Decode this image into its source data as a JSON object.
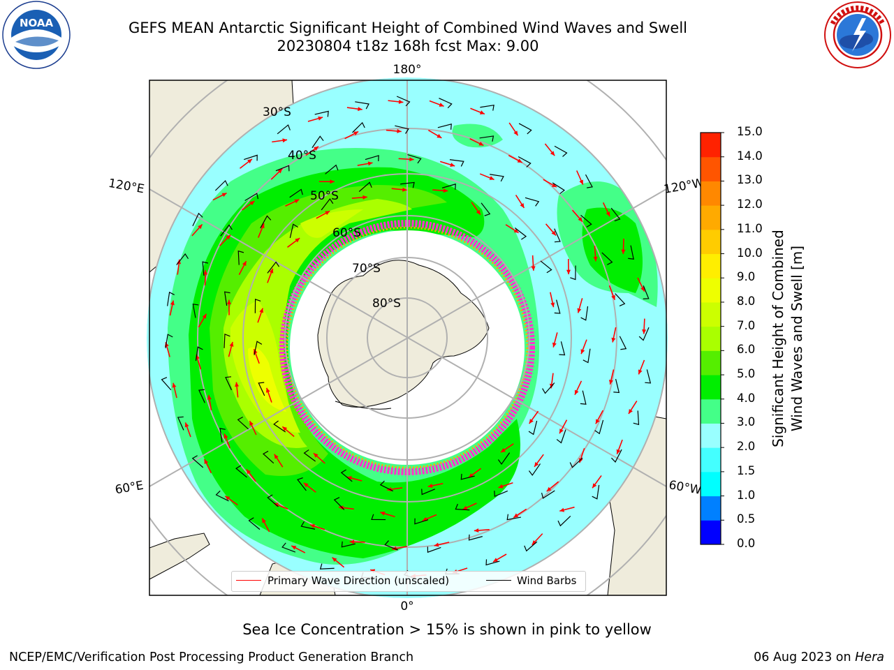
{
  "header": {
    "title_line1": "GEFS MEAN Antarctic Significant Height of Combined Wind Waves and Swell",
    "title_line2": "20230804 t18z 168h fcst   Max: 9.00"
  },
  "logos": {
    "noaa_text": "NOAA",
    "noaa_ring_text": "NATIONAL OCEANIC AND ATMOSPHERIC ADMINISTRATION · U.S. DEPARTMENT OF COMMERCE",
    "nws_ring_text": "NATIONAL WEATHER SERVICE"
  },
  "map": {
    "projection": "south-polar-stereographic",
    "center_longitude_top": "180°",
    "longitude_labels": {
      "top": "180°",
      "bottom": "0°",
      "upper_left": "120°E",
      "lower_left": "60°E",
      "upper_right": "120°W",
      "lower_right": "60°W"
    },
    "latitude_labels": [
      "30°S",
      "40°S",
      "50°S",
      "60°S",
      "70°S",
      "80°S"
    ],
    "colors": {
      "land": "#efecdc",
      "ice_free_area": "#ffffff",
      "grid": "#b0b0b0",
      "coast": "#000000",
      "wave_arrow": "#ff0000",
      "wind_barb": "#000000",
      "ice_edge": "#ff33cc"
    }
  },
  "colorbar": {
    "title": "Significant Height of Combined\nWind Waves and Swell [m]",
    "tick_labels": [
      "0.0",
      "0.5",
      "1.0",
      "1.5",
      "2.0",
      "3.0",
      "4.0",
      "5.0",
      "6.0",
      "7.0",
      "8.0",
      "9.0",
      "10.0",
      "11.0",
      "12.0",
      "13.0",
      "14.0",
      "15.0"
    ],
    "colors": [
      "#0000ff",
      "#0080ff",
      "#00ffff",
      "#44ffff",
      "#99ffff",
      "#44ff88",
      "#00ee00",
      "#55ee00",
      "#aaff00",
      "#ccff00",
      "#eeff00",
      "#ffee00",
      "#ffcc00",
      "#ffaa00",
      "#ff8800",
      "#ff5500",
      "#ff2200"
    ]
  },
  "legend": {
    "wave_label": "Primary Wave Direction (unscaled)",
    "wind_label": "Wind Barbs",
    "wave_color": "#ff0000",
    "wind_color": "#000000"
  },
  "notes": {
    "ice_note": "Sea Ice Concentration > 15% is shown in pink to yellow",
    "footer_left": "NCEP/EMC/Verification Post Processing Product Generation Branch",
    "footer_date": "06 Aug 2023 on ",
    "footer_machine": "Hera"
  }
}
